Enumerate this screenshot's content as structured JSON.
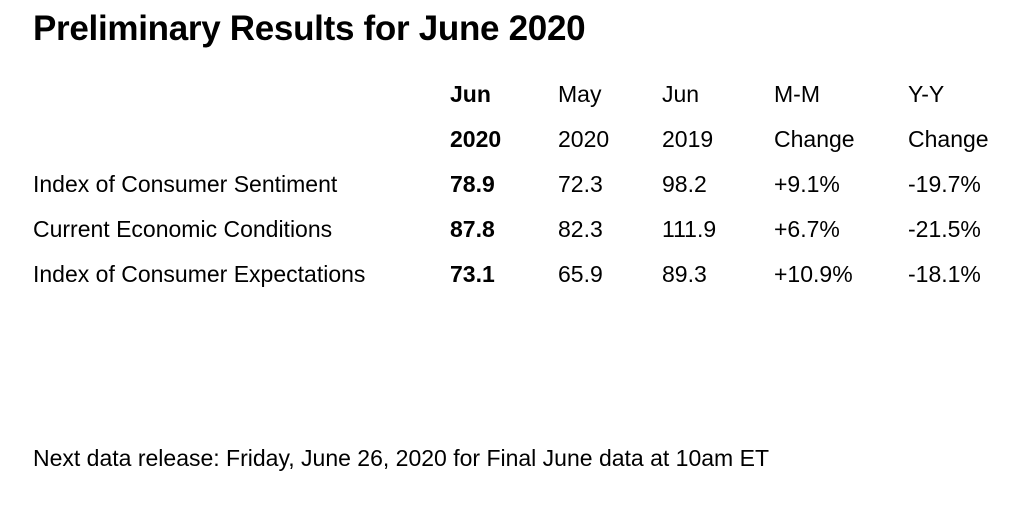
{
  "title": "Preliminary Results for June 2020",
  "colors": {
    "text": "#000000",
    "background": "#ffffff"
  },
  "table": {
    "columns": [
      {
        "line1": "Jun",
        "line2": "2020",
        "bold": true
      },
      {
        "line1": "May",
        "line2": "2020",
        "bold": false
      },
      {
        "line1": "Jun",
        "line2": "2019",
        "bold": false
      },
      {
        "line1": "M-M",
        "line2": "Change",
        "bold": false
      },
      {
        "line1": "Y-Y",
        "line2": "Change",
        "bold": false
      }
    ],
    "rows": [
      {
        "label": "Index of Consumer Sentiment",
        "jun_2020": "78.9",
        "may_2020": "72.3",
        "jun_2019": "98.2",
        "mm_change": "+9.1%",
        "yy_change": "-19.7%"
      },
      {
        "label": "Current Economic Conditions",
        "jun_2020": "87.8",
        "may_2020": "82.3",
        "jun_2019": "111.9",
        "mm_change": "+6.7%",
        "yy_change": "-21.5%"
      },
      {
        "label": "Index of Consumer Expectations",
        "jun_2020": "73.1",
        "may_2020": "65.9",
        "jun_2019": "89.3",
        "mm_change": "+10.9%",
        "yy_change": "-18.1%"
      }
    ]
  },
  "footer": {
    "next_release": "Next data release: Friday, June 26, 2020 for Final June data at 10am ET"
  }
}
